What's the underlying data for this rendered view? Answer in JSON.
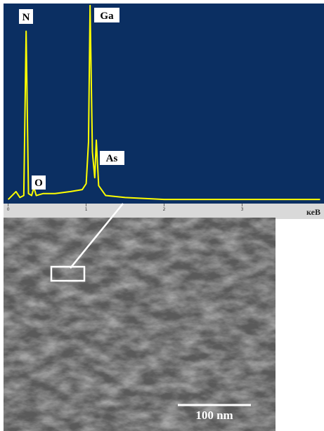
{
  "chart_data": {
    "type": "line",
    "x": [
      0,
      0.1,
      0.15,
      0.2,
      0.23,
      0.26,
      0.3,
      0.33,
      0.36,
      0.45,
      0.6,
      0.8,
      0.95,
      1.0,
      1.03,
      1.05,
      1.08,
      1.11,
      1.13,
      1.16,
      1.25,
      1.5,
      2.0,
      3.0,
      4.0
    ],
    "values": [
      1,
      5,
      2,
      3,
      86,
      4,
      3,
      7,
      3,
      4,
      4,
      5,
      6,
      9,
      30,
      99,
      25,
      12,
      31,
      8,
      3,
      2,
      1,
      1,
      1
    ],
    "color": "#ffff00",
    "xlim": [
      -0.06,
      4.05
    ],
    "xticks": [
      0,
      1,
      2,
      3
    ],
    "ylim": [
      0,
      100
    ],
    "x_label": "кеВ",
    "annotations": [
      "N",
      "O",
      "Ga",
      "As"
    ]
  },
  "image": {
    "scale_bar": "100 nm"
  }
}
